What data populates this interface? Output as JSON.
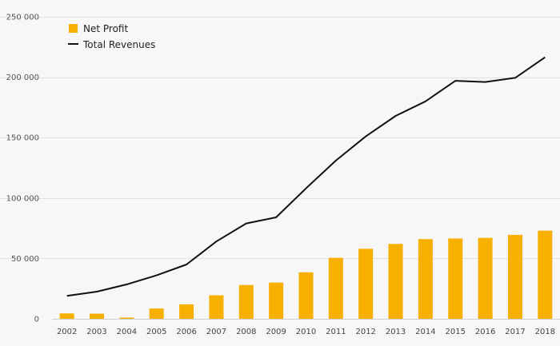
{
  "chart_data": {
    "type": "bar",
    "title": "",
    "xlabel": "",
    "ylabel": "",
    "categories": [
      "2002",
      "2003",
      "2004",
      "2005",
      "2006",
      "2007",
      "2008",
      "2009",
      "2010",
      "2011",
      "2012",
      "2013",
      "2014",
      "2015",
      "2016",
      "2017",
      "2018"
    ],
    "ylim": [
      0,
      250000
    ],
    "yticks": [
      0,
      50000,
      100000,
      150000,
      200000,
      250000
    ],
    "ytick_labels": [
      "0",
      "50 000",
      "100 000",
      "150 000",
      "200 000",
      "250 000"
    ],
    "grid": true,
    "legend_position": "top-left",
    "series": [
      {
        "name": "Net Profit",
        "type": "bar",
        "color": "#f7b000",
        "values": [
          4500,
          4300,
          1000,
          8500,
          12000,
          19500,
          28000,
          30000,
          38500,
          50500,
          58000,
          62000,
          66000,
          66500,
          67000,
          69500,
          73000
        ]
      },
      {
        "name": "Total Revenues",
        "type": "line",
        "color": "#111111",
        "values": [
          19000,
          22500,
          28500,
          36000,
          45000,
          64000,
          79000,
          84000,
          108000,
          131000,
          151000,
          168000,
          180000,
          197000,
          196000,
          199500,
          216500
        ]
      }
    ]
  }
}
